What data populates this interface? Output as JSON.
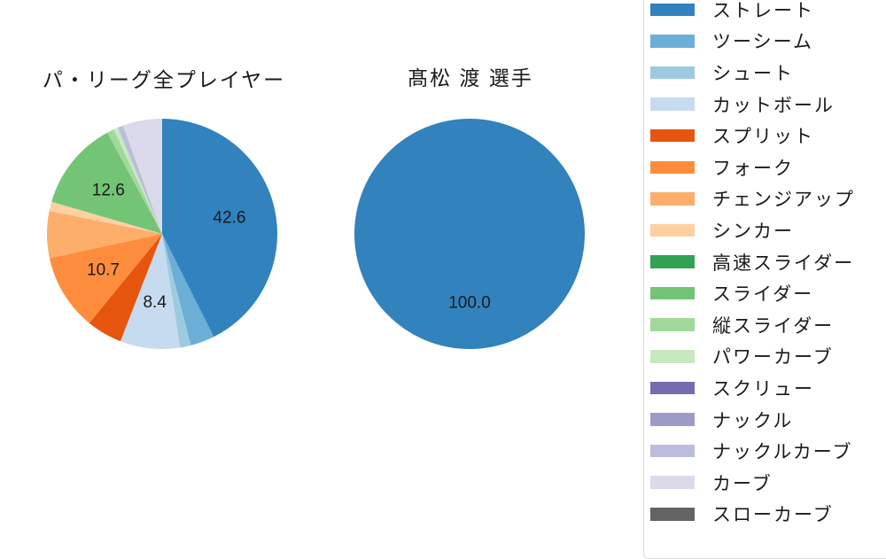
{
  "page": {
    "background": "#ffffff",
    "text_color": "#1a1a1a",
    "legend_border_color": "#d8d8d8"
  },
  "titles": {
    "left": "パ・リーグ全プレイヤー",
    "right": "髙松 渡 選手"
  },
  "chart_data": [
    {
      "type": "pie",
      "title": "パ・リーグ全プレイヤー",
      "start_angle": "top",
      "direction": "clockwise",
      "label_radius_factor": 0.6,
      "categories": [
        "ストレート",
        "ツーシーム",
        "シュート",
        "カットボール",
        "スプリット",
        "フォーク",
        "チェンジアップ",
        "シンカー",
        "高速スライダー",
        "スライダー",
        "縦スライダー",
        "パワーカーブ",
        "スクリュー",
        "ナックル",
        "ナックルカーブ",
        "カーブ",
        "スローカーブ"
      ],
      "values": [
        42.6,
        3.4,
        1.5,
        8.4,
        5.0,
        10.7,
        6.6,
        1.3,
        0,
        12.6,
        1.0,
        0.6,
        0,
        0,
        0.8,
        5.5,
        0
      ],
      "colors": [
        "#3182bd",
        "#6baed6",
        "#9ecae1",
        "#c6dbef",
        "#e6550d",
        "#fd8d3c",
        "#fdae6b",
        "#fdd0a2",
        "#31a354",
        "#74c476",
        "#a1d99b",
        "#c7e9c0",
        "#756bb1",
        "#9e9ac8",
        "#bcbddc",
        "#dadaeb",
        "#636363"
      ],
      "slice_labels": [
        "42.6",
        null,
        null,
        "8.4",
        null,
        "10.7",
        null,
        null,
        null,
        "12.6",
        null,
        null,
        null,
        null,
        null,
        null,
        null
      ]
    },
    {
      "type": "pie",
      "title": "髙松 渡 選手",
      "start_angle": "top",
      "direction": "clockwise",
      "label_radius_factor": 0.6,
      "categories": [
        "ストレート",
        "ツーシーム",
        "シュート",
        "カットボール",
        "スプリット",
        "フォーク",
        "チェンジアップ",
        "シンカー",
        "高速スライダー",
        "スライダー",
        "縦スライダー",
        "パワーカーブ",
        "スクリュー",
        "ナックル",
        "ナックルカーブ",
        "カーブ",
        "スローカーブ"
      ],
      "values": [
        100.0,
        0,
        0,
        0,
        0,
        0,
        0,
        0,
        0,
        0,
        0,
        0,
        0,
        0,
        0,
        0,
        0
      ],
      "colors": [
        "#3182bd",
        "#6baed6",
        "#9ecae1",
        "#c6dbef",
        "#e6550d",
        "#fd8d3c",
        "#fdae6b",
        "#fdd0a2",
        "#31a354",
        "#74c476",
        "#a1d99b",
        "#c7e9c0",
        "#756bb1",
        "#9e9ac8",
        "#bcbddc",
        "#dadaeb",
        "#636363"
      ],
      "slice_labels": [
        "100.0",
        null,
        null,
        null,
        null,
        null,
        null,
        null,
        null,
        null,
        null,
        null,
        null,
        null,
        null,
        null,
        null
      ]
    }
  ],
  "legend": {
    "position": "right",
    "items": [
      "ストレート",
      "ツーシーム",
      "シュート",
      "カットボール",
      "スプリット",
      "フォーク",
      "チェンジアップ",
      "シンカー",
      "高速スライダー",
      "スライダー",
      "縦スライダー",
      "パワーカーブ",
      "スクリュー",
      "ナックル",
      "ナックルカーブ",
      "カーブ",
      "スローカーブ"
    ]
  }
}
